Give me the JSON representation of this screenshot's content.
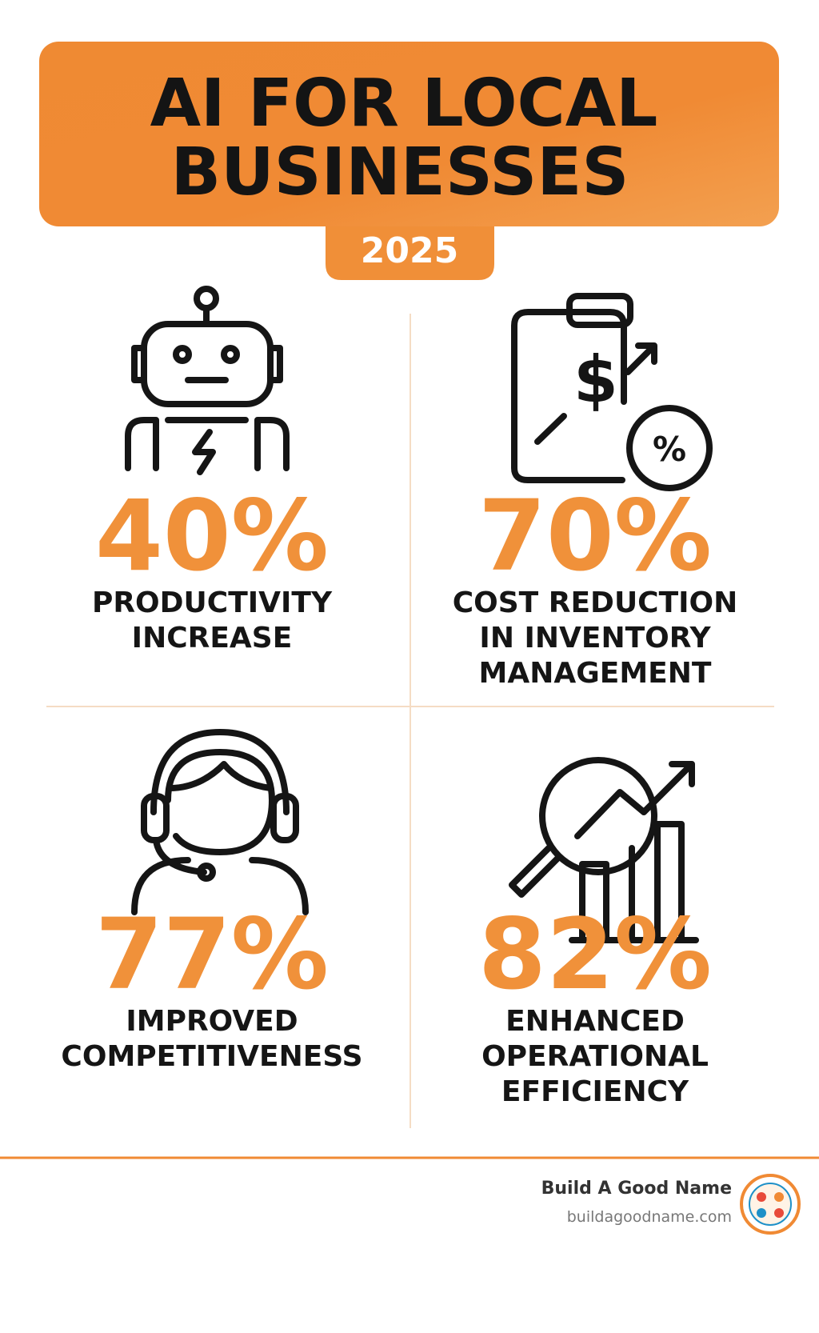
{
  "header": {
    "title_lines": [
      "AI FOR LOCAL",
      "BUSINESSES"
    ],
    "year": "2025"
  },
  "stats": [
    {
      "value": "40%",
      "label_lines": [
        "PRODUCTIVITY",
        "INCREASE"
      ]
    },
    {
      "value": "70%",
      "label_lines": [
        "COST REDUCTION",
        "IN INVENTORY",
        "MANAGEMENT"
      ]
    },
    {
      "value": "77%",
      "label_lines": [
        "IMPROVED",
        "COMPETITIVENESS"
      ]
    },
    {
      "value": "82%",
      "label_lines": [
        "ENHANCED",
        "OPERATIONAL",
        "EFFICIENCY"
      ]
    }
  ],
  "footer": {
    "brand": "Build A Good Name",
    "url": "buildagoodname.com"
  }
}
